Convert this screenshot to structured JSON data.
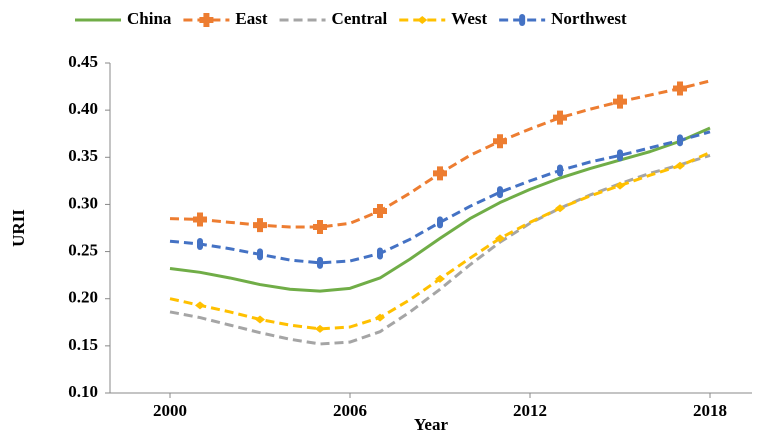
{
  "chart_data": {
    "type": "line",
    "x_label": "Year",
    "y_label": "URII",
    "x": [
      2000,
      2001,
      2002,
      2003,
      2004,
      2005,
      2006,
      2007,
      2008,
      2009,
      2010,
      2011,
      2012,
      2013,
      2014,
      2015,
      2016,
      2017,
      2018
    ],
    "series": [
      {
        "name": "China",
        "color": "#70ad47",
        "dashed": false,
        "marker": "none",
        "values": [
          0.232,
          0.228,
          0.222,
          0.215,
          0.21,
          0.208,
          0.211,
          0.222,
          0.242,
          0.264,
          0.285,
          0.302,
          0.316,
          0.328,
          0.338,
          0.347,
          0.356,
          0.367,
          0.381
        ]
      },
      {
        "name": "East",
        "color": "#ed7d31",
        "dashed": true,
        "marker": "cross",
        "values": [
          0.285,
          0.284,
          0.281,
          0.278,
          0.276,
          0.276,
          0.28,
          0.293,
          0.312,
          0.333,
          0.352,
          0.367,
          0.38,
          0.392,
          0.401,
          0.409,
          0.416,
          0.423,
          0.431
        ]
      },
      {
        "name": "Central",
        "color": "#a5a5a5",
        "dashed": true,
        "marker": "none",
        "values": [
          0.186,
          0.18,
          0.172,
          0.164,
          0.157,
          0.152,
          0.154,
          0.165,
          0.186,
          0.21,
          0.236,
          0.26,
          0.28,
          0.296,
          0.31,
          0.322,
          0.333,
          0.342,
          0.352
        ]
      },
      {
        "name": "West",
        "color": "#ffc000",
        "dashed": true,
        "marker": "diamond",
        "values": [
          0.2,
          0.193,
          0.186,
          0.178,
          0.172,
          0.168,
          0.17,
          0.18,
          0.199,
          0.221,
          0.243,
          0.264,
          0.281,
          0.296,
          0.309,
          0.32,
          0.331,
          0.341,
          0.355
        ]
      },
      {
        "name": "Northwest",
        "color": "#4472c4",
        "dashed": true,
        "marker": "capsule",
        "values": [
          0.261,
          0.258,
          0.253,
          0.247,
          0.241,
          0.238,
          0.24,
          0.248,
          0.263,
          0.281,
          0.298,
          0.313,
          0.325,
          0.336,
          0.345,
          0.352,
          0.36,
          0.368,
          0.377
        ]
      }
    ],
    "xlim": [
      1998,
      2019.4
    ],
    "xticks": [
      2000,
      2006,
      2012,
      2018
    ],
    "ylim": [
      0.1,
      0.45
    ],
    "yticks": [
      {
        "value": 0.1,
        "label": "0.10"
      },
      {
        "value": 0.15,
        "label": "0.15"
      },
      {
        "value": 0.2,
        "label": "0.20"
      },
      {
        "value": 0.25,
        "label": "0.25"
      },
      {
        "value": 0.3,
        "label": "0.30"
      },
      {
        "value": 0.35,
        "label": "0.35"
      },
      {
        "value": 0.4,
        "label": "0.40"
      },
      {
        "value": 0.45,
        "label": "0.45"
      }
    ],
    "grid": false,
    "legend": "top"
  }
}
